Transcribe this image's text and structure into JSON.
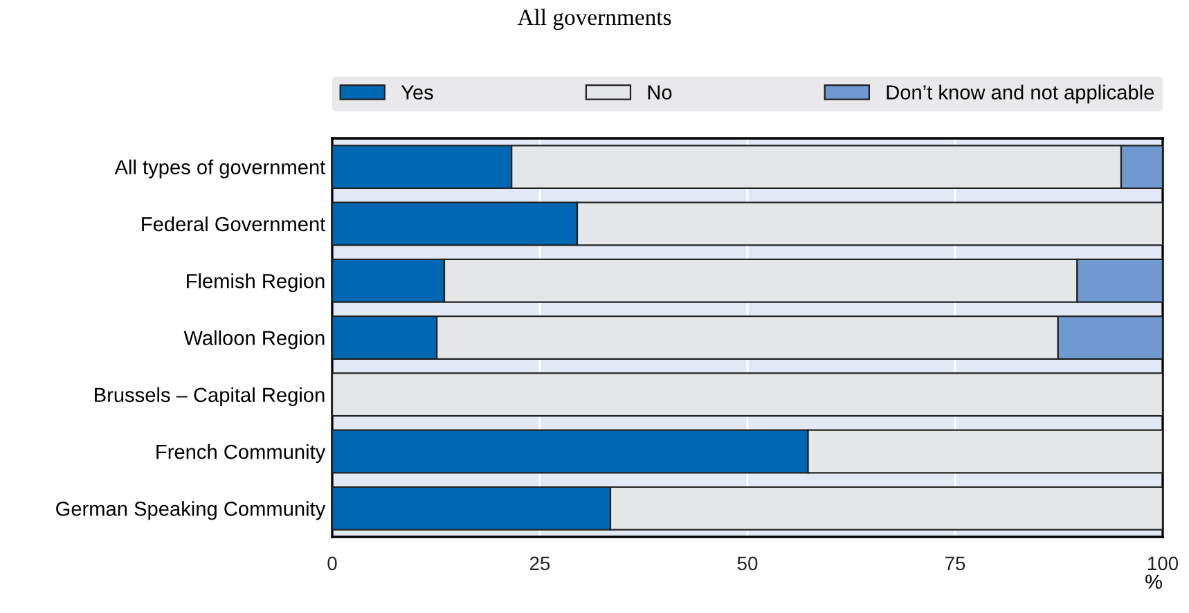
{
  "chart_data": {
    "type": "bar",
    "orientation": "horizontal",
    "stacked": true,
    "title": "All governments",
    "xlabel": "%",
    "categories": [
      "All types of government",
      "Federal Government",
      "Flemish Region",
      "Walloon Region",
      "Brussels – Capital Region",
      "French Community",
      "German Speaking Community"
    ],
    "series": [
      {
        "name": "Yes",
        "color": "#0068b3",
        "values": [
          21.6,
          29.5,
          13.5,
          12.6,
          0,
          57.3,
          33.5
        ]
      },
      {
        "name": "No",
        "color": "#e5e6e8",
        "values": [
          73.4,
          70.5,
          76.2,
          74.8,
          100,
          42.7,
          66.5
        ]
      },
      {
        "name": "Don’t know and not applicable",
        "color": "#7099d0",
        "values": [
          5.0,
          0,
          10.3,
          12.6,
          0,
          0,
          0
        ]
      }
    ],
    "xlim": [
      0,
      100
    ],
    "xticks": [
      0,
      25,
      50,
      75,
      100
    ],
    "grid": "x",
    "legend": "top"
  }
}
